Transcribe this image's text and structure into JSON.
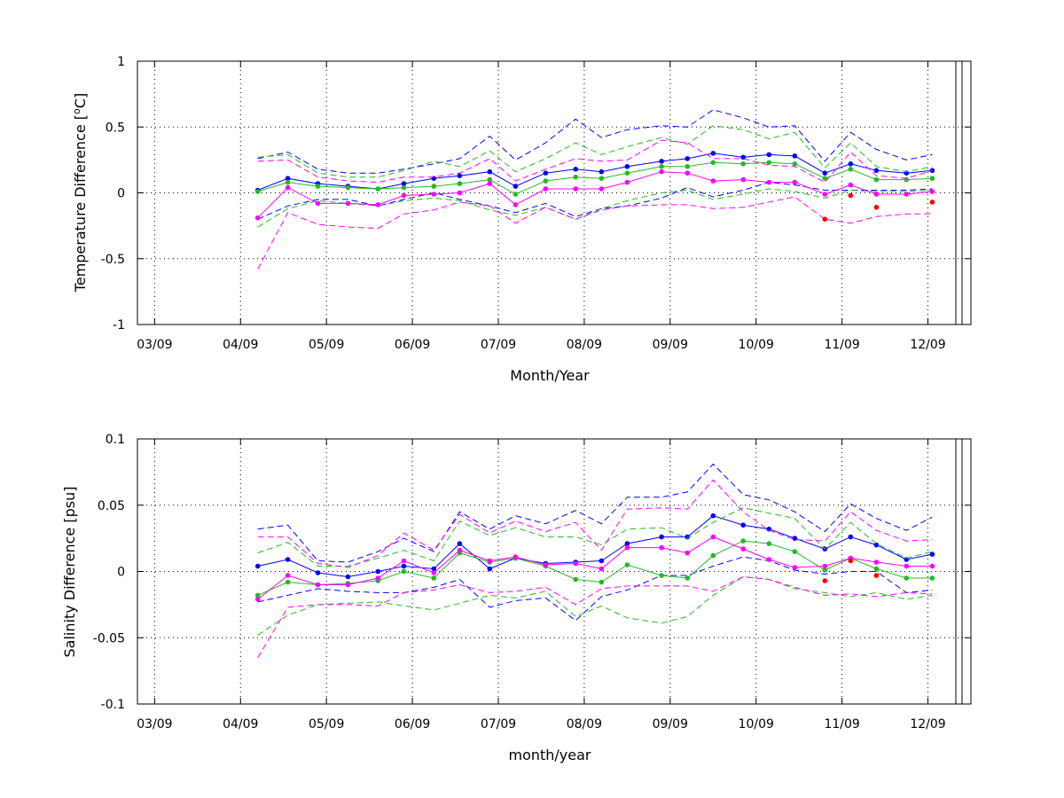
{
  "chart_data": [
    {
      "type": "line",
      "xlabel": "Month/Year",
      "ylabel": "Temperature Difference [°C]",
      "ylabel_parts": {
        "pre": "Temperature Difference [",
        "sup": "o",
        "post": "C]"
      },
      "ylim": [
        -1,
        1
      ],
      "yticks": [
        -1,
        -0.5,
        0,
        0.5,
        1
      ],
      "ytick_labels": [
        "-1",
        "-0.5",
        "0",
        "0.5",
        "1"
      ],
      "xlim": [
        -0.2,
        9.5
      ],
      "xticks": [
        0,
        1,
        2,
        3,
        4,
        5,
        6,
        7,
        8,
        9
      ],
      "xtick_labels": [
        "03/09",
        "04/09",
        "05/09",
        "06/09",
        "07/09",
        "08/09",
        "09/09",
        "10/09",
        "11/09",
        "12/09"
      ],
      "grid": true,
      "x": [
        1.2,
        1.55,
        1.9,
        2.25,
        2.6,
        2.9,
        3.25,
        3.55,
        3.9,
        4.2,
        4.55,
        4.9,
        5.2,
        5.5,
        5.9,
        6.2,
        6.5,
        6.85,
        7.15,
        7.45,
        7.8,
        8.1,
        8.4,
        8.75,
        9.05
      ],
      "series": [
        {
          "color": "#0000ff",
          "values": [
            0.02,
            0.11,
            0.07,
            0.05,
            0.03,
            0.07,
            0.11,
            0.13,
            0.16,
            0.05,
            0.15,
            0.18,
            0.16,
            0.2,
            0.24,
            0.26,
            0.3,
            0.27,
            0.29,
            0.28,
            0.15,
            0.22,
            0.17,
            0.15,
            0.17
          ],
          "upper": [
            0.26,
            0.31,
            0.18,
            0.15,
            0.15,
            0.18,
            0.22,
            0.26,
            0.43,
            0.25,
            0.38,
            0.56,
            0.42,
            0.48,
            0.51,
            0.5,
            0.63,
            0.57,
            0.5,
            0.51,
            0.24,
            0.46,
            0.33,
            0.25,
            0.29
          ],
          "lower": [
            -0.2,
            -0.1,
            -0.05,
            -0.05,
            -0.1,
            -0.05,
            0.0,
            -0.05,
            -0.1,
            -0.15,
            -0.08,
            -0.18,
            -0.12,
            -0.1,
            -0.04,
            0.04,
            -0.03,
            0.02,
            0.08,
            0.06,
            0.02,
            0.02,
            0.02,
            0.02,
            0.03
          ]
        },
        {
          "color": "#22bb22",
          "values": [
            0.01,
            0.08,
            0.05,
            0.04,
            0.03,
            0.04,
            0.05,
            0.07,
            0.1,
            -0.01,
            0.09,
            0.12,
            0.11,
            0.15,
            0.2,
            0.2,
            0.23,
            0.22,
            0.23,
            0.22,
            0.11,
            0.18,
            0.1,
            0.1,
            0.11
          ],
          "upper": [
            0.27,
            0.29,
            0.15,
            0.12,
            0.12,
            0.17,
            0.24,
            0.2,
            0.32,
            0.16,
            0.26,
            0.38,
            0.29,
            0.35,
            0.42,
            0.37,
            0.51,
            0.48,
            0.41,
            0.46,
            0.19,
            0.38,
            0.2,
            0.16,
            0.2
          ],
          "lower": [
            -0.26,
            -0.12,
            -0.06,
            -0.08,
            -0.1,
            -0.06,
            -0.04,
            -0.06,
            -0.13,
            -0.17,
            -0.11,
            -0.2,
            -0.12,
            -0.06,
            0.0,
            0.02,
            -0.05,
            -0.01,
            0.03,
            0.01,
            -0.04,
            0.02,
            0.01,
            0.01,
            0.02
          ]
        },
        {
          "color": "#ff00ff",
          "values": [
            -0.19,
            0.04,
            -0.08,
            -0.08,
            -0.09,
            -0.02,
            -0.01,
            0.0,
            0.07,
            -0.09,
            0.03,
            0.03,
            0.03,
            0.08,
            0.16,
            0.15,
            0.09,
            0.1,
            0.08,
            0.08,
            -0.01,
            0.06,
            -0.01,
            -0.01,
            0.01
          ],
          "upper": [
            0.24,
            0.25,
            0.12,
            0.09,
            0.08,
            0.12,
            0.12,
            0.15,
            0.26,
            0.09,
            0.18,
            0.26,
            0.24,
            0.25,
            0.4,
            0.38,
            0.26,
            0.26,
            0.21,
            0.2,
            0.08,
            0.31,
            0.13,
            0.11,
            0.17
          ],
          "lower": [
            -0.58,
            -0.15,
            -0.24,
            -0.26,
            -0.27,
            -0.16,
            -0.13,
            -0.07,
            -0.1,
            -0.23,
            -0.11,
            -0.2,
            -0.13,
            -0.1,
            -0.09,
            -0.09,
            -0.12,
            -0.11,
            -0.07,
            -0.03,
            -0.2,
            -0.23,
            -0.18,
            -0.16,
            -0.16
          ]
        }
      ],
      "red_points": {
        "color": "#ff0000",
        "x": [
          7.8,
          8.1,
          8.4,
          9.05
        ],
        "y": [
          -0.2,
          -0.02,
          -0.11,
          -0.07
        ]
      }
    },
    {
      "type": "line",
      "xlabel": "month/year",
      "ylabel": "Salinity Difference [psu]",
      "ylim": [
        -0.1,
        0.1
      ],
      "yticks": [
        -0.1,
        -0.05,
        0,
        0.05,
        0.1
      ],
      "ytick_labels": [
        "-0.1",
        "-0.05",
        "0",
        "0.05",
        "0.1"
      ],
      "xlim": [
        -0.2,
        9.5
      ],
      "xticks": [
        0,
        1,
        2,
        3,
        4,
        5,
        6,
        7,
        8,
        9
      ],
      "xtick_labels": [
        "03/09",
        "04/09",
        "05/09",
        "06/09",
        "07/09",
        "08/09",
        "09/09",
        "10/09",
        "11/09",
        "12/09"
      ],
      "grid": true,
      "x": [
        1.2,
        1.55,
        1.9,
        2.25,
        2.6,
        2.9,
        3.25,
        3.55,
        3.9,
        4.2,
        4.55,
        4.9,
        5.2,
        5.5,
        5.9,
        6.2,
        6.5,
        6.85,
        7.15,
        7.45,
        7.8,
        8.1,
        8.4,
        8.75,
        9.05
      ],
      "series": [
        {
          "color": "#0000ff",
          "values": [
            0.004,
            0.009,
            -0.001,
            -0.004,
            0.0,
            0.004,
            0.002,
            0.021,
            0.002,
            0.01,
            0.006,
            0.007,
            0.008,
            0.021,
            0.026,
            0.026,
            0.042,
            0.035,
            0.032,
            0.025,
            0.017,
            0.026,
            0.02,
            0.009,
            0.013
          ],
          "upper": [
            0.032,
            0.035,
            0.008,
            0.007,
            0.015,
            0.025,
            0.015,
            0.045,
            0.032,
            0.042,
            0.036,
            0.046,
            0.036,
            0.056,
            0.056,
            0.06,
            0.081,
            0.058,
            0.054,
            0.045,
            0.03,
            0.051,
            0.04,
            0.031,
            0.041
          ],
          "lower": [
            -0.023,
            -0.018,
            -0.013,
            -0.015,
            -0.016,
            -0.016,
            -0.012,
            -0.006,
            -0.027,
            -0.022,
            -0.02,
            -0.037,
            -0.019,
            -0.014,
            -0.003,
            -0.003,
            0.004,
            0.011,
            0.008,
            0.001,
            -0.002,
            0.0,
            0.0,
            -0.016,
            -0.014
          ]
        },
        {
          "color": "#22bb22",
          "values": [
            -0.018,
            -0.008,
            -0.01,
            -0.009,
            -0.007,
            0.0,
            -0.005,
            0.014,
            0.007,
            0.01,
            0.004,
            -0.006,
            -0.008,
            0.005,
            -0.003,
            -0.005,
            0.012,
            0.023,
            0.021,
            0.015,
            0.001,
            0.01,
            0.002,
            -0.005,
            -0.005
          ],
          "upper": [
            0.014,
            0.022,
            0.004,
            0.004,
            0.01,
            0.016,
            0.008,
            0.038,
            0.027,
            0.033,
            0.026,
            0.026,
            0.02,
            0.032,
            0.033,
            0.025,
            0.037,
            0.048,
            0.044,
            0.04,
            0.017,
            0.037,
            0.021,
            0.01,
            0.015
          ],
          "lower": [
            -0.048,
            -0.033,
            -0.025,
            -0.024,
            -0.023,
            -0.026,
            -0.029,
            -0.024,
            -0.018,
            -0.02,
            -0.015,
            -0.034,
            -0.026,
            -0.035,
            -0.039,
            -0.034,
            -0.018,
            -0.004,
            -0.006,
            -0.013,
            -0.016,
            -0.019,
            -0.016,
            -0.021,
            -0.018
          ]
        },
        {
          "color": "#ff00ff",
          "values": [
            -0.021,
            -0.003,
            -0.01,
            -0.01,
            -0.005,
            0.008,
            -0.001,
            0.016,
            0.008,
            0.011,
            0.005,
            0.006,
            0.002,
            0.018,
            0.018,
            0.014,
            0.026,
            0.017,
            0.009,
            0.003,
            0.004,
            0.01,
            0.007,
            0.004,
            0.004
          ],
          "upper": [
            0.026,
            0.026,
            0.006,
            0.003,
            0.012,
            0.029,
            0.016,
            0.043,
            0.029,
            0.038,
            0.03,
            0.037,
            0.016,
            0.047,
            0.048,
            0.047,
            0.069,
            0.045,
            0.031,
            0.024,
            0.023,
            0.045,
            0.031,
            0.023,
            0.024
          ],
          "lower": [
            -0.065,
            -0.027,
            -0.025,
            -0.025,
            -0.026,
            -0.016,
            -0.014,
            -0.01,
            -0.016,
            -0.015,
            -0.012,
            -0.025,
            -0.013,
            -0.011,
            -0.011,
            -0.011,
            -0.015,
            -0.004,
            -0.006,
            -0.012,
            -0.018,
            -0.017,
            -0.019,
            -0.016,
            -0.017
          ]
        }
      ],
      "red_points": {
        "color": "#ff0000",
        "x": [
          7.8,
          8.1,
          8.4
        ],
        "y": [
          -0.007,
          0.008,
          -0.003
        ]
      }
    }
  ]
}
